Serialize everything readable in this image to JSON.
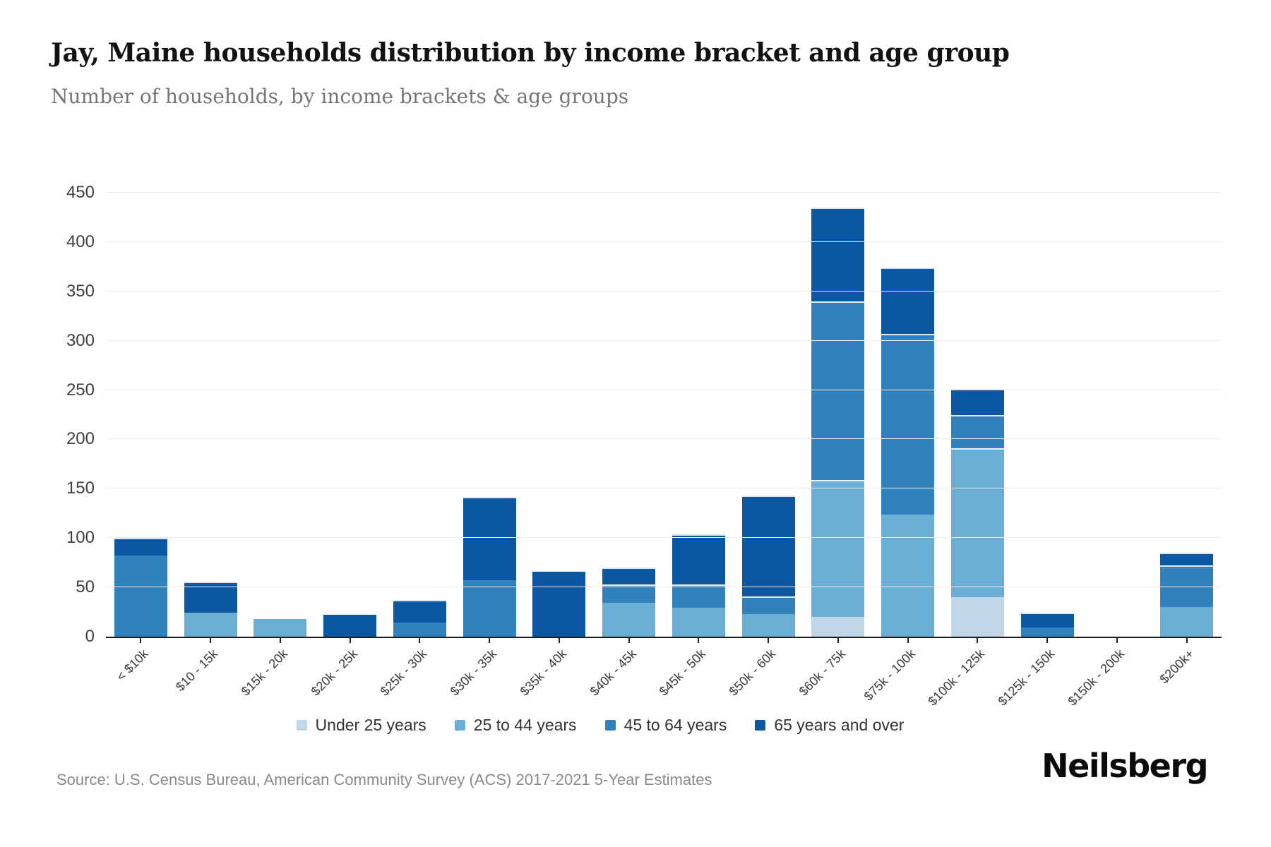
{
  "header": {
    "title": "Jay, Maine households distribution by income bracket and age group",
    "subtitle": "Number of households, by income brackets & age groups"
  },
  "footer": {
    "source": "Source: U.S. Census Bureau, American Community Survey (ACS) 2017-2021 5-Year Estimates",
    "brand": "Neilsberg"
  },
  "chart_data": {
    "type": "bar",
    "stacked": true,
    "title": "Jay, Maine households distribution by income bracket and age group",
    "xlabel": "",
    "ylabel": "Number of households",
    "ylim": [
      0,
      450
    ],
    "yticks": [
      0,
      50,
      100,
      150,
      200,
      250,
      300,
      350,
      400,
      450
    ],
    "grid": true,
    "legend_position": "bottom",
    "categories": [
      "< $10k",
      "$10 - 15k",
      "$15k - 20k",
      "$20k - 25k",
      "$25k - 30k",
      "$30k - 35k",
      "$35k - 40k",
      "$40k - 45k",
      "$45k - 50k",
      "$50k - 60k",
      "$60k - 75k",
      "$75k - 100k",
      "$100k - 125k",
      "$125k - 150k",
      "$150k - 200k",
      "$200k+"
    ],
    "series": [
      {
        "name": "Under 25 years",
        "color": "#c1d7e8",
        "values": [
          0,
          0,
          0,
          0,
          0,
          0,
          0,
          0,
          0,
          0,
          20,
          0,
          40,
          0,
          0,
          0
        ]
      },
      {
        "name": "25 to 44 years",
        "color": "#6baed6",
        "values": [
          0,
          24,
          18,
          0,
          0,
          0,
          0,
          34,
          29,
          23,
          139,
          124,
          151,
          0,
          0,
          30
        ]
      },
      {
        "name": "45 to 64 years",
        "color": "#3181bd",
        "values": [
          82,
          0,
          0,
          0,
          14,
          57,
          0,
          19,
          24,
          18,
          181,
          183,
          34,
          9,
          0,
          42
        ]
      },
      {
        "name": "65 years and over",
        "color": "#0b57a4",
        "values": [
          18,
          32,
          0,
          22,
          23,
          85,
          66,
          17,
          51,
          102,
          95,
          67,
          26,
          15,
          0,
          13
        ]
      }
    ]
  }
}
